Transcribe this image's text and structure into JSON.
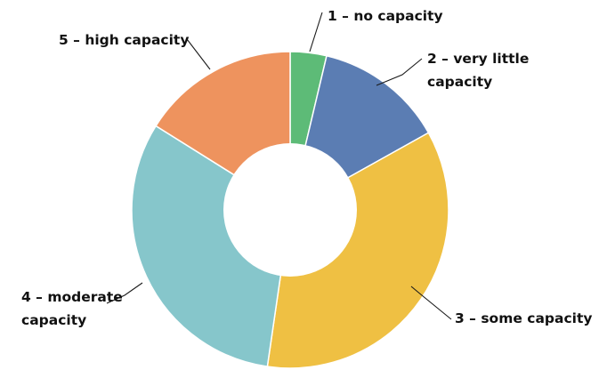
{
  "chart_data": {
    "type": "pie",
    "donut": true,
    "title": "",
    "start_angle_deg": 0,
    "direction": "clockwise",
    "slices": [
      {
        "label_lines": [
          "1 – no capacity"
        ],
        "value": 3.7,
        "color": "#5dbb77"
      },
      {
        "label_lines": [
          "2 – very little",
          "capacity"
        ],
        "value": 13.2,
        "color": "#5b7db3"
      },
      {
        "label_lines": [
          "3 – some capacity"
        ],
        "value": 35.4,
        "color": "#efc043"
      },
      {
        "label_lines": [
          "4 – moderate",
          "capacity"
        ],
        "value": 31.6,
        "color": "#86c6cb"
      },
      {
        "label_lines": [
          "5 – high capacity"
        ],
        "value": 16.1,
        "color": "#ee935e"
      }
    ]
  }
}
